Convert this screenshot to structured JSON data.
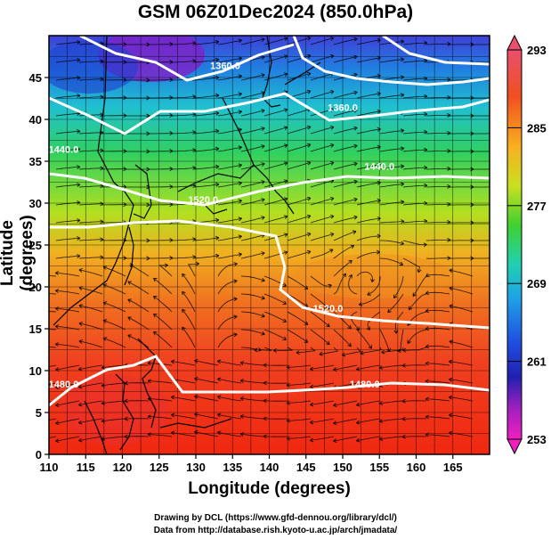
{
  "title": "GSM 06Z01Dec2024 (850.0hPa)",
  "x_axis": {
    "label": "Longitude (degrees)",
    "min": 110,
    "max": 170,
    "ticks": [
      "110",
      "115",
      "120",
      "125",
      "130",
      "135",
      "140",
      "145",
      "150",
      "155",
      "160",
      "165"
    ]
  },
  "y_axis": {
    "label": "Latitude  (degrees)",
    "min": 0,
    "max": 50,
    "ticks": [
      "0",
      "5",
      "10",
      "15",
      "20",
      "25",
      "30",
      "35",
      "40",
      "45"
    ]
  },
  "colorbar": {
    "min": 253,
    "max": 293,
    "labels": [
      "293",
      "285",
      "277",
      "269",
      "261",
      "253"
    ],
    "colors": [
      "#e8506e",
      "#f04a20",
      "#f7a020",
      "#f0e020",
      "#60d830",
      "#20d0a0",
      "#20b0e0",
      "#2060e0",
      "#2020c0",
      "#9020c0",
      "#e020c0"
    ]
  },
  "contour_labels": [
    {
      "text": "1360.0",
      "lon": 134,
      "lat": 46
    },
    {
      "text": "1360.0",
      "lon": 150,
      "lat": 41
    },
    {
      "text": "1440.0",
      "lon": 112,
      "lat": 36
    },
    {
      "text": "1440.0",
      "lon": 155,
      "lat": 34
    },
    {
      "text": "1520.0",
      "lon": 131,
      "lat": 30
    },
    {
      "text": "1520.0",
      "lon": 148,
      "lat": 17
    },
    {
      "text": "1480.0",
      "lon": 112,
      "lat": 8
    },
    {
      "text": "1480.0",
      "lon": 153,
      "lat": 8
    }
  ],
  "credits": {
    "line1": "Drawing by DCL (https://www.gfd-dennou.org/library/dcl/)",
    "line2": "Data from http://database.rish.kyoto-u.ac.jp/arch/jmadata/"
  }
}
